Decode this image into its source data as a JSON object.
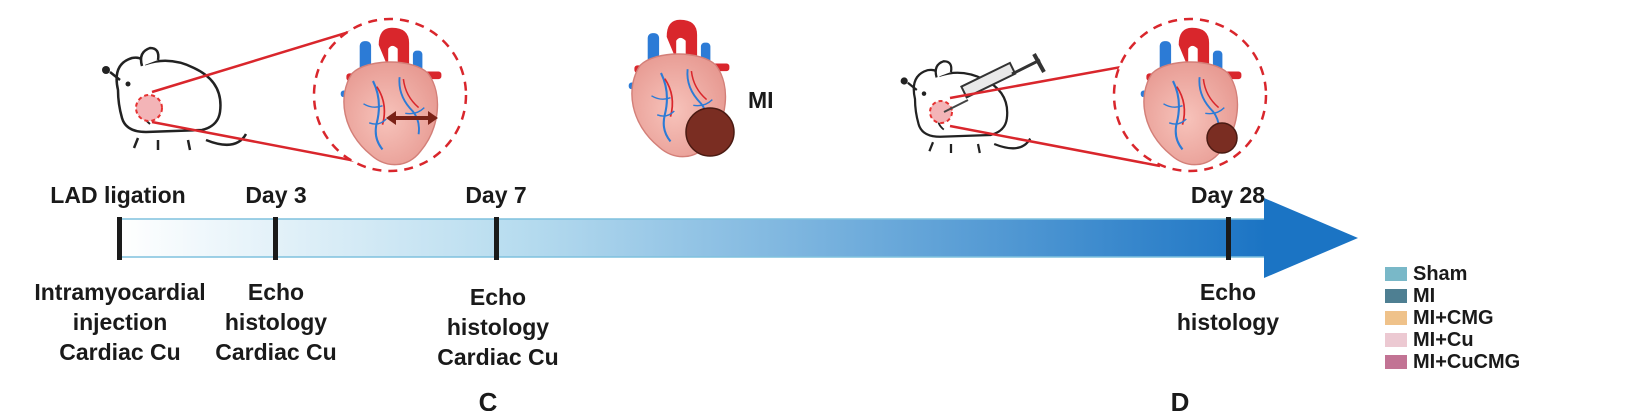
{
  "timeline": {
    "milestones": [
      {
        "top": "LAD ligation",
        "bottom": [
          "Intramyocardial",
          "injection",
          "Cardiac Cu"
        ]
      },
      {
        "top": "Day 3",
        "bottom": [
          "Echo",
          "histology",
          "Cardiac Cu"
        ]
      },
      {
        "top": "Day 7",
        "bottom": [
          "Echo",
          "histology",
          "Cardiac Cu"
        ]
      },
      {
        "top": "Day 28",
        "bottom": [
          "Echo",
          "histology"
        ]
      }
    ],
    "arrow_colors": [
      "#ffffff",
      "#1b74c4"
    ]
  },
  "mi_label": "MI",
  "panel_labels": [
    "C",
    "D"
  ],
  "legend": [
    {
      "label": "Sham",
      "color": "#79b8c8"
    },
    {
      "label": "MI",
      "color": "#4e7f92"
    },
    {
      "label": "MI+CMG",
      "color": "#efc28a"
    },
    {
      "label": "MI+Cu",
      "color": "#ecc9d2"
    },
    {
      "label": "MI+CuCMG",
      "color": "#c27394"
    }
  ],
  "icons": [
    "mouse-icon",
    "heart-icon",
    "syringe-icon",
    "infarct-icon",
    "magnify-circle-icon"
  ]
}
